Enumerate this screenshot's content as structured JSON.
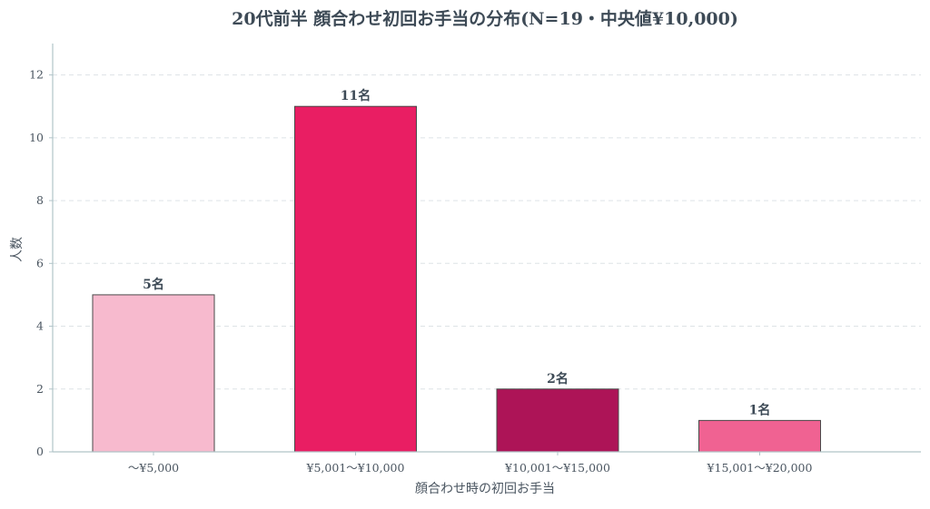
{
  "chart_data": {
    "type": "bar",
    "title": "20代前半 顔合わせ初回お手当の分布(N=19・中央値¥10,000)",
    "xlabel": "顔合わせ時の初回お手当",
    "ylabel": "人数",
    "categories": [
      "〜¥5,000",
      "¥5,001〜¥10,000",
      "¥10,001〜¥15,000",
      "¥15,001〜¥20,000"
    ],
    "values": [
      5,
      11,
      2,
      1
    ],
    "data_labels": [
      "5名",
      "11名",
      "2名",
      "1名"
    ],
    "bar_colors": [
      "#f7bace",
      "#e91e63",
      "#ad1457",
      "#f06292"
    ],
    "ylim": [
      0,
      13
    ],
    "yticks": [
      0,
      2,
      4,
      6,
      8,
      10,
      12
    ],
    "grid": true,
    "grid_axis": "y",
    "legend": "none"
  },
  "colors": {
    "axis": "#b0c4c8",
    "grid": "#dde3e6",
    "bar_edge": "#4a4a4a",
    "text": "#3d4a56"
  }
}
